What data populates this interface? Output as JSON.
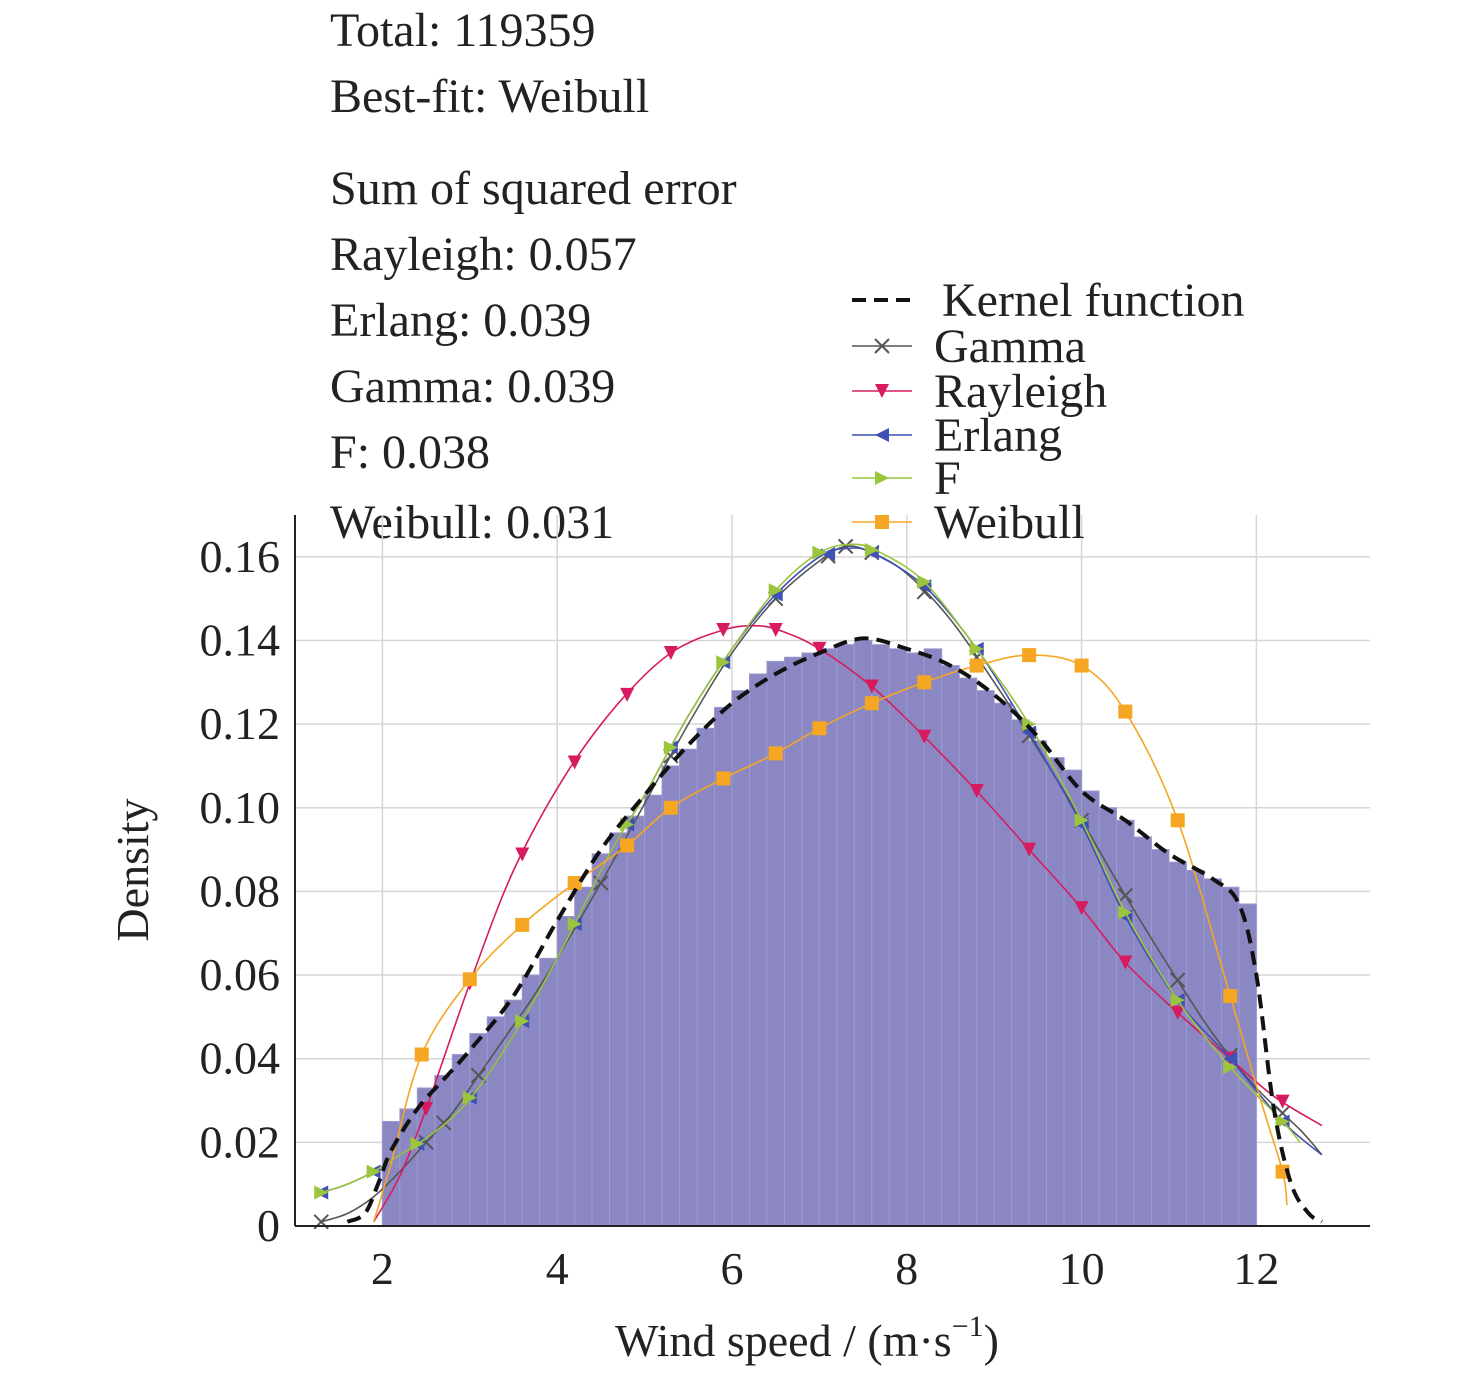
{
  "chart_data": {
    "type": "bar",
    "xlabel": "Wind speed / (m·s",
    "xlabel_sup": "−1",
    "xlabel_close": ")",
    "ylabel": "Density",
    "xlim": [
      1.0,
      13.3
    ],
    "ylim": [
      0,
      0.17
    ],
    "x_ticks": [
      2,
      4,
      6,
      8,
      10,
      12
    ],
    "y_ticks": [
      0,
      0.02,
      0.04,
      0.06,
      0.08,
      0.1,
      0.12,
      0.14,
      0.16
    ],
    "y_tick_labels": [
      "0",
      "0.02",
      "0.04",
      "0.06",
      "0.08",
      "0.10",
      "0.12",
      "0.14",
      "0.16"
    ],
    "grid": true,
    "legend_position": "top-right",
    "annotations": {
      "total": "Total: 119359",
      "best_fit": "Best-fit: Weibull",
      "sse_title": "Sum of squared error",
      "sse": [
        "Rayleigh: 0.057",
        "Erlang: 0.039",
        "Gamma: 0.039",
        "F: 0.038",
        "Weibull: 0.031"
      ]
    },
    "histogram": {
      "color": "#8a87c2",
      "bin_width": 0.2,
      "bins": [
        [
          2.1,
          0.025
        ],
        [
          2.3,
          0.028
        ],
        [
          2.5,
          0.033
        ],
        [
          2.7,
          0.036
        ],
        [
          2.9,
          0.041
        ],
        [
          3.1,
          0.046
        ],
        [
          3.3,
          0.05
        ],
        [
          3.5,
          0.054
        ],
        [
          3.7,
          0.06
        ],
        [
          3.9,
          0.064
        ],
        [
          4.1,
          0.074
        ],
        [
          4.3,
          0.081
        ],
        [
          4.5,
          0.089
        ],
        [
          4.7,
          0.094
        ],
        [
          4.9,
          0.098
        ],
        [
          5.1,
          0.103
        ],
        [
          5.3,
          0.11
        ],
        [
          5.5,
          0.114
        ],
        [
          5.7,
          0.119
        ],
        [
          5.9,
          0.124
        ],
        [
          6.1,
          0.128
        ],
        [
          6.3,
          0.132
        ],
        [
          6.5,
          0.135
        ],
        [
          6.7,
          0.136
        ],
        [
          6.9,
          0.137
        ],
        [
          7.1,
          0.138
        ],
        [
          7.3,
          0.139
        ],
        [
          7.5,
          0.14
        ],
        [
          7.7,
          0.139
        ],
        [
          7.9,
          0.138
        ],
        [
          8.1,
          0.137
        ],
        [
          8.3,
          0.138
        ],
        [
          8.5,
          0.134
        ],
        [
          8.7,
          0.131
        ],
        [
          8.9,
          0.128
        ],
        [
          9.1,
          0.125
        ],
        [
          9.3,
          0.121
        ],
        [
          9.5,
          0.116
        ],
        [
          9.7,
          0.112
        ],
        [
          9.9,
          0.109
        ],
        [
          10.1,
          0.104
        ],
        [
          10.3,
          0.1
        ],
        [
          10.5,
          0.097
        ],
        [
          10.7,
          0.093
        ],
        [
          10.9,
          0.09
        ],
        [
          11.1,
          0.087
        ],
        [
          11.3,
          0.085
        ],
        [
          11.5,
          0.083
        ],
        [
          11.7,
          0.081
        ],
        [
          11.9,
          0.077
        ]
      ]
    },
    "series": [
      {
        "name": "Kernel function",
        "color": "#111111",
        "dashed": true,
        "marker": "none",
        "points": [
          [
            1.6,
            0.001
          ],
          [
            1.8,
            0.003
          ],
          [
            1.95,
            0.01
          ],
          [
            2.1,
            0.018
          ],
          [
            2.4,
            0.028
          ],
          [
            2.7,
            0.035
          ],
          [
            3.0,
            0.042
          ],
          [
            3.5,
            0.055
          ],
          [
            4.0,
            0.073
          ],
          [
            4.5,
            0.09
          ],
          [
            5.0,
            0.103
          ],
          [
            5.5,
            0.115
          ],
          [
            6.0,
            0.125
          ],
          [
            6.5,
            0.132
          ],
          [
            7.0,
            0.137
          ],
          [
            7.5,
            0.1405
          ],
          [
            8.0,
            0.138
          ],
          [
            8.5,
            0.134
          ],
          [
            9.0,
            0.127
          ],
          [
            9.5,
            0.117
          ],
          [
            10.0,
            0.104
          ],
          [
            10.5,
            0.097
          ],
          [
            11.0,
            0.089
          ],
          [
            11.5,
            0.083
          ],
          [
            11.8,
            0.077
          ],
          [
            12.0,
            0.06
          ],
          [
            12.2,
            0.028
          ],
          [
            12.4,
            0.01
          ],
          [
            12.6,
            0.003
          ],
          [
            12.75,
            0.001
          ]
        ],
        "markers_at": []
      },
      {
        "name": "Gamma",
        "color": "#555555",
        "dashed": false,
        "marker": "x",
        "points": [
          [
            1.3,
            0.001
          ],
          [
            1.6,
            0.003
          ],
          [
            1.9,
            0.007
          ],
          [
            2.2,
            0.013
          ],
          [
            2.5,
            0.02
          ],
          [
            2.8,
            0.027
          ],
          [
            3.1,
            0.036
          ],
          [
            3.4,
            0.045
          ],
          [
            3.7,
            0.054
          ],
          [
            4.0,
            0.064
          ],
          [
            4.5,
            0.082
          ],
          [
            5.0,
            0.101
          ],
          [
            5.5,
            0.12
          ],
          [
            6.0,
            0.137
          ],
          [
            6.5,
            0.15
          ],
          [
            7.0,
            0.159
          ],
          [
            7.3,
            0.1625
          ],
          [
            7.6,
            0.161
          ],
          [
            8.0,
            0.156
          ],
          [
            8.5,
            0.145
          ],
          [
            9.0,
            0.13
          ],
          [
            9.5,
            0.114
          ],
          [
            10.0,
            0.097
          ],
          [
            10.5,
            0.079
          ],
          [
            11.0,
            0.062
          ],
          [
            11.5,
            0.046
          ],
          [
            12.0,
            0.033
          ],
          [
            12.5,
            0.023
          ],
          [
            12.75,
            0.017
          ]
        ],
        "markers_at": [
          1.3,
          2.5,
          2.7,
          3.1,
          4.5,
          5.3,
          6.5,
          7.1,
          7.3,
          7.6,
          8.2,
          8.8,
          9.4,
          10.0,
          10.5,
          11.1,
          11.7,
          12.3
        ]
      },
      {
        "name": "Rayleigh",
        "color": "#d81b60",
        "dashed": false,
        "marker": "triangle-down",
        "points": [
          [
            1.9,
            0.001
          ],
          [
            2.2,
            0.012
          ],
          [
            2.5,
            0.028
          ],
          [
            3.0,
            0.058
          ],
          [
            3.5,
            0.085
          ],
          [
            4.1,
            0.108
          ],
          [
            4.7,
            0.125
          ],
          [
            5.3,
            0.137
          ],
          [
            5.9,
            0.1425
          ],
          [
            6.3,
            0.1435
          ],
          [
            6.6,
            0.142
          ],
          [
            7.0,
            0.138
          ],
          [
            7.6,
            0.129
          ],
          [
            8.2,
            0.117
          ],
          [
            8.8,
            0.104
          ],
          [
            9.4,
            0.09
          ],
          [
            10.0,
            0.076
          ],
          [
            10.5,
            0.063
          ],
          [
            11.1,
            0.051
          ],
          [
            11.7,
            0.04
          ],
          [
            12.2,
            0.031
          ],
          [
            12.75,
            0.024
          ]
        ],
        "markers_at": [
          2.5,
          3.0,
          3.6,
          4.2,
          4.8,
          5.3,
          5.9,
          6.5,
          7.0,
          7.6,
          8.2,
          8.8,
          9.4,
          10.0,
          10.5,
          11.1,
          11.7,
          12.3
        ]
      },
      {
        "name": "Erlang",
        "color": "#3f51b5",
        "dashed": false,
        "marker": "triangle-left",
        "points": [
          [
            1.3,
            0.008
          ],
          [
            1.6,
            0.01
          ],
          [
            1.9,
            0.013
          ],
          [
            2.2,
            0.017
          ],
          [
            2.5,
            0.021
          ],
          [
            2.8,
            0.026
          ],
          [
            3.1,
            0.033
          ],
          [
            3.6,
            0.049
          ],
          [
            4.1,
            0.068
          ],
          [
            4.6,
            0.089
          ],
          [
            5.0,
            0.103
          ],
          [
            5.5,
            0.122
          ],
          [
            6.0,
            0.138
          ],
          [
            6.5,
            0.151
          ],
          [
            7.0,
            0.16
          ],
          [
            7.3,
            0.162
          ],
          [
            7.6,
            0.161
          ],
          [
            8.2,
            0.153
          ],
          [
            8.8,
            0.138
          ],
          [
            9.4,
            0.118
          ],
          [
            10.0,
            0.096
          ],
          [
            10.5,
            0.074
          ],
          [
            11.1,
            0.054
          ],
          [
            11.7,
            0.04
          ],
          [
            12.3,
            0.025
          ],
          [
            12.75,
            0.017
          ]
        ],
        "markers_at": [
          1.3,
          1.9,
          2.4,
          3.0,
          3.6,
          4.2,
          4.8,
          5.3,
          5.9,
          6.5,
          7.1,
          7.6,
          8.2,
          8.8,
          9.4,
          10.0,
          10.5,
          11.1,
          11.7,
          12.3
        ]
      },
      {
        "name": "F",
        "color": "#9bc53d",
        "dashed": false,
        "marker": "triangle-right",
        "points": [
          [
            1.3,
            0.008
          ],
          [
            1.6,
            0.01
          ],
          [
            1.9,
            0.013
          ],
          [
            2.2,
            0.017
          ],
          [
            2.5,
            0.021
          ],
          [
            2.8,
            0.026
          ],
          [
            3.1,
            0.033
          ],
          [
            3.6,
            0.049
          ],
          [
            4.1,
            0.068
          ],
          [
            4.6,
            0.089
          ],
          [
            5.0,
            0.103
          ],
          [
            5.5,
            0.122
          ],
          [
            6.0,
            0.138
          ],
          [
            6.5,
            0.152
          ],
          [
            7.0,
            0.161
          ],
          [
            7.4,
            0.163
          ],
          [
            7.7,
            0.161
          ],
          [
            8.2,
            0.154
          ],
          [
            8.8,
            0.138
          ],
          [
            9.4,
            0.12
          ],
          [
            10.0,
            0.097
          ],
          [
            10.5,
            0.075
          ],
          [
            11.1,
            0.054
          ],
          [
            11.7,
            0.038
          ],
          [
            12.3,
            0.025
          ],
          [
            12.5,
            0.02
          ]
        ],
        "markers_at": [
          1.3,
          1.9,
          2.4,
          3.0,
          3.6,
          4.2,
          4.8,
          5.3,
          5.9,
          6.5,
          7.0,
          7.6,
          8.2,
          8.8,
          9.4,
          10.0,
          10.5,
          11.1,
          11.7,
          12.3
        ]
      },
      {
        "name": "Weibull",
        "color": "#f5a623",
        "dashed": false,
        "marker": "square",
        "points": [
          [
            1.9,
            0.001
          ],
          [
            2.1,
            0.015
          ],
          [
            2.45,
            0.041
          ],
          [
            3.0,
            0.059
          ],
          [
            3.6,
            0.072
          ],
          [
            4.2,
            0.082
          ],
          [
            4.8,
            0.091
          ],
          [
            5.3,
            0.1
          ],
          [
            5.9,
            0.107
          ],
          [
            6.5,
            0.113
          ],
          [
            7.0,
            0.119
          ],
          [
            7.6,
            0.125
          ],
          [
            8.2,
            0.13
          ],
          [
            8.8,
            0.134
          ],
          [
            9.4,
            0.1365
          ],
          [
            10.0,
            0.134
          ],
          [
            10.5,
            0.123
          ],
          [
            11.1,
            0.097
          ],
          [
            11.7,
            0.055
          ],
          [
            12.05,
            0.03
          ],
          [
            12.3,
            0.013
          ],
          [
            12.35,
            0.005
          ]
        ],
        "markers_at": [
          2.45,
          3.0,
          3.6,
          4.2,
          4.8,
          5.3,
          5.9,
          6.5,
          7.0,
          7.6,
          8.2,
          8.8,
          9.4,
          10.0,
          10.5,
          11.1,
          11.7,
          12.3
        ]
      }
    ]
  }
}
